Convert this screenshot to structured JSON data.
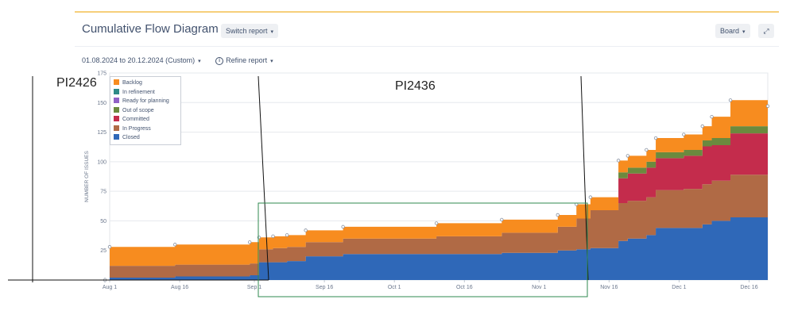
{
  "header": {
    "title": "Cumulative Flow Diagram",
    "switch_report": "Switch report",
    "board": "Board"
  },
  "filters": {
    "date_range": "01.08.2024 to 20.12.2024 (Custom)",
    "refine": "Refine report"
  },
  "annotations": {
    "pi_left": "PI2426",
    "pi_mid": "PI2436"
  },
  "icons": [
    "chevron-down-icon",
    "expand-icon",
    "info-icon"
  ],
  "chart_data": {
    "type": "area",
    "stacked": true,
    "ylabel": "NUMBER OF ISSUES",
    "ylim": [
      0,
      175
    ],
    "yticks": [
      0,
      25,
      50,
      75,
      100,
      125,
      150,
      175
    ],
    "xlim": [
      "2024-08-01",
      "2024-12-20"
    ],
    "xticks": [
      {
        "date": "2024-08-01",
        "label": "Aug 1"
      },
      {
        "date": "2024-08-16",
        "label": "Aug 16"
      },
      {
        "date": "2024-09-01",
        "label": "Sep 1"
      },
      {
        "date": "2024-09-16",
        "label": "Sep 16"
      },
      {
        "date": "2024-10-01",
        "label": "Oct 1"
      },
      {
        "date": "2024-10-16",
        "label": "Oct 16"
      },
      {
        "date": "2024-11-01",
        "label": "Nov 1"
      },
      {
        "date": "2024-11-16",
        "label": "Nov 16"
      },
      {
        "date": "2024-12-01",
        "label": "Dec 1"
      },
      {
        "date": "2024-12-16",
        "label": "Dec 16"
      }
    ],
    "x": [
      "2024-08-01",
      "2024-08-15",
      "2024-08-31",
      "2024-09-02",
      "2024-09-05",
      "2024-09-08",
      "2024-09-12",
      "2024-09-20",
      "2024-10-10",
      "2024-10-24",
      "2024-11-05",
      "2024-11-09",
      "2024-11-12",
      "2024-11-18",
      "2024-11-20",
      "2024-11-24",
      "2024-11-26",
      "2024-12-02",
      "2024-12-06",
      "2024-12-08",
      "2024-12-12",
      "2024-12-20"
    ],
    "series": [
      {
        "name": "Closed",
        "color": "#2f68b8",
        "values": [
          2,
          3,
          4,
          15,
          15,
          16,
          20,
          22,
          22,
          23,
          25,
          26,
          27,
          33,
          35,
          38,
          44,
          44,
          47,
          50,
          53,
          53
        ]
      },
      {
        "name": "In Progress",
        "color": "#b06a45",
        "values": [
          10,
          10,
          10,
          11,
          12,
          12,
          12,
          13,
          15,
          17,
          20,
          26,
          32,
          32,
          32,
          32,
          32,
          33,
          34,
          34,
          36,
          37
        ]
      },
      {
        "name": "Committed",
        "color": "#c42c4c",
        "values": [
          0,
          0,
          0,
          0,
          0,
          0,
          0,
          0,
          0,
          0,
          0,
          0,
          0,
          21,
          23,
          25,
          27,
          28,
          32,
          30,
          35,
          36
        ]
      },
      {
        "name": "Out of scope",
        "color": "#6b8a3e",
        "values": [
          0,
          0,
          0,
          0,
          0,
          0,
          0,
          0,
          0,
          0,
          0,
          0,
          0,
          5,
          5,
          5,
          5,
          5,
          5,
          6,
          6,
          0
        ]
      },
      {
        "name": "Ready for planning",
        "color": "#9161c7",
        "values": [
          0,
          0,
          0,
          0,
          0,
          0,
          0,
          0,
          0,
          0,
          0,
          0,
          0,
          0,
          0,
          0,
          0,
          0,
          0,
          0,
          0,
          0
        ]
      },
      {
        "name": "In refinement",
        "color": "#2e8a87",
        "values": [
          0,
          0,
          0,
          0,
          0,
          0,
          0,
          0,
          0,
          0,
          0,
          0,
          0,
          0,
          0,
          0,
          0,
          0,
          0,
          0,
          0,
          0
        ]
      },
      {
        "name": "Backlog",
        "color": "#f78c1f",
        "values": [
          16,
          17,
          18,
          10,
          10,
          10,
          10,
          10,
          11,
          11,
          10,
          12,
          11,
          10,
          10,
          10,
          12,
          13,
          12,
          18,
          22,
          21
        ]
      }
    ],
    "legend": [
      "Backlog",
      "In refinement",
      "Ready for planning",
      "Out of scope",
      "Committed",
      "In Progress",
      "Closed"
    ],
    "legend_position": "top-left",
    "grid": true
  }
}
